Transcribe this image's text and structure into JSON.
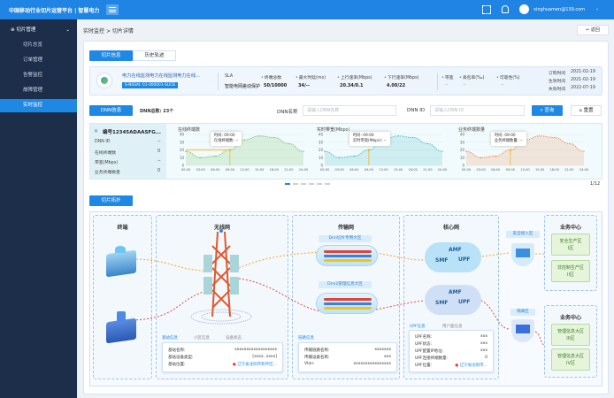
{
  "topbar": {
    "title": "中国移动行业切片运营平台 | 智慧电力",
    "user_email": "xinghuamen@139.com",
    "icons": [
      "menu-icon",
      "scan-icon",
      "bell-icon",
      "user-avatar-icon",
      "chevron-down-icon"
    ]
  },
  "sidebar": {
    "group": "切片管理",
    "items": [
      {
        "label": "切片总览"
      },
      {
        "label": "订单管理"
      },
      {
        "label": "告警监控"
      },
      {
        "label": "故障管理"
      },
      {
        "label": "实时监控",
        "active": true
      }
    ]
  },
  "breadcrumb": {
    "parent": "实时监控",
    "sep": ">",
    "current": "切片详情"
  },
  "back_button": "返回",
  "tabs": [
    {
      "label": "切片信息",
      "active": true
    },
    {
      "label": "历史轨迹"
    }
  ],
  "slice": {
    "name": "电力在线监测电力在线监测电力在线...",
    "tag": "S-NSSAI: 01-000001-SLICE",
    "fields": [
      {
        "label": "SLA",
        "value": "智能电网差动保护"
      },
      {
        "label": "终端总数",
        "value": "50/10000"
      },
      {
        "label": "最大时延(ms)",
        "value": "34/--"
      },
      {
        "label": "上行速率(Mbps)",
        "value": "20.34/0.1"
      },
      {
        "label": "下行速率(Mbps)",
        "value": "4.00/22"
      }
    ],
    "fields2": [
      {
        "label": "带宽",
        "value": "--"
      },
      {
        "label": "丢包率(‰)",
        "value": "--"
      },
      {
        "label": "可靠性(%)",
        "value": "--"
      }
    ],
    "dates": [
      {
        "label": "订购时间",
        "value": "2021-02-19"
      },
      {
        "label": "生效时间",
        "value": "2021-02-19"
      },
      {
        "label": "失效时间",
        "value": "2022-07-19"
      }
    ]
  },
  "dnn": {
    "button": "DNN信息",
    "total": "DNN总数: 23个",
    "name_label": "DNN名称",
    "name_placeholder": "请输入DNN名称",
    "id_label": "DNN ID",
    "id_placeholder": "请输入DNN ID",
    "search": "查询",
    "reset": "重置",
    "card": {
      "title": "编号12345ADAASFG...",
      "rows": [
        {
          "label": "DNN ID",
          "value": "--"
        },
        {
          "label": "在线终端数",
          "value": "0"
        },
        {
          "label": "带宽(Mbps)",
          "value": "--"
        },
        {
          "label": "业务终端数量",
          "value": "0"
        }
      ]
    },
    "pager": "1/12"
  },
  "chart_data": [
    {
      "type": "area",
      "title": "在线终端数",
      "color": "#6cbf5a",
      "x": [
        "00:00",
        "03:00",
        "06:00",
        "09:00",
        "12:00",
        "15:00",
        "18:00",
        "21:00",
        "24:00"
      ],
      "y": [
        18,
        10,
        12,
        20,
        33,
        38,
        36,
        28,
        18
      ],
      "ylim": [
        0,
        40
      ],
      "yticks": [
        0,
        10,
        20,
        30,
        40
      ],
      "tooltip": {
        "time": "时间: 09:00",
        "value": "在线终端数: --"
      }
    },
    {
      "type": "area",
      "title": "实时带宽(Mbps)",
      "color": "#34b9c4",
      "x": [
        "00:00",
        "03:00",
        "06:00",
        "09:00",
        "12:00",
        "15:00",
        "18:00",
        "21:00",
        "24:00"
      ],
      "y": [
        18,
        10,
        12,
        20,
        33,
        38,
        36,
        28,
        18
      ],
      "ylim": [
        0,
        40
      ],
      "yticks": [
        0,
        10,
        20,
        30,
        40
      ],
      "tooltip": {
        "time": "时间: 09:00",
        "value": "实时带宽(Mbps): --"
      }
    },
    {
      "type": "area",
      "title": "业务终端数量",
      "color": "#ef8447",
      "x": [
        "00:00",
        "03:00",
        "06:00",
        "09:00",
        "12:00",
        "15:00",
        "18:00",
        "21:00",
        "24:00"
      ],
      "y": [
        18,
        10,
        12,
        20,
        33,
        38,
        36,
        28,
        18
      ],
      "ylim": [
        0,
        40
      ],
      "yticks": [
        0,
        10,
        20,
        30,
        40
      ],
      "tooltip": {
        "time": "时间: 09:00",
        "value": "业务终端数量: --"
      }
    }
  ],
  "topology": {
    "button": "切片拓扑",
    "terminal": "终端",
    "ran": "无线网",
    "transport": "传输网",
    "core": "核心网",
    "business_top": "业务中心",
    "business_bottom": "业务中心",
    "transport_labels": [
      "Dnn切片专用大区",
      "Dnn2管理信息大区"
    ],
    "core_nfs": [
      "AMF",
      "SMF",
      "UPF"
    ],
    "firewall_top": "安全接入区",
    "firewall_bottom": "隔离区",
    "zones": [
      "安全生产区\nI区",
      "非控制生产区\nII区",
      "管理信息大区\nIII区",
      "管理信息大区\nIV区"
    ],
    "ran_tabs": [
      "基站信息",
      "小区信息",
      "设备状态"
    ],
    "ran_rows": [
      {
        "label": "基站名称:",
        "value": "xxxxxxxxxxxxxxxxxx"
      },
      {
        "label": "基站设备类型:",
        "value": "[xxxx, xxxx]"
      },
      {
        "label": "基站位置:",
        "value": "辽宁省沈阳市和平区..."
      }
    ],
    "transport_tab": "链路信息",
    "transport_rows": [
      {
        "label": "传输链路名称:",
        "value": "xxxxxxx"
      },
      {
        "label": "传输设备名称:",
        "value": "xxx"
      },
      {
        "label": "Vlan:",
        "value": "xxxxxxxxxxxxxxxx"
      }
    ],
    "core_tabs": [
      "UPF信息",
      "用户面信息"
    ],
    "core_rows": [
      {
        "label": "UPF名称:",
        "value": "xxx"
      },
      {
        "label": "UPF状态:",
        "value": "xxx"
      },
      {
        "label": "UPF配置IP地址:",
        "value": "xxx"
      },
      {
        "label": "UPF连接终端数量:",
        "value": "0"
      },
      {
        "label": "UPF位置:",
        "value": "辽宁省沈阳市..."
      }
    ]
  }
}
